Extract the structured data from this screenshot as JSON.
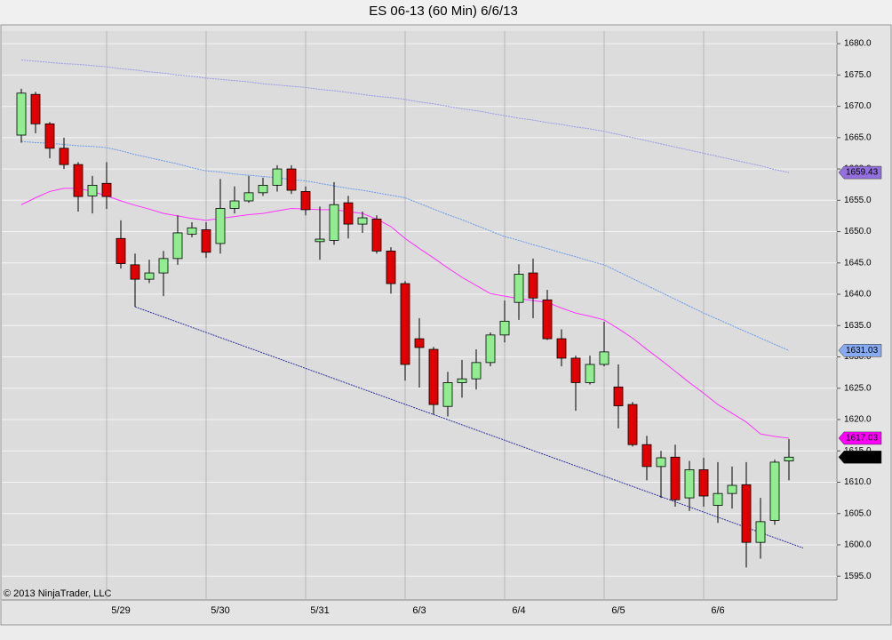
{
  "chart_data": {
    "type": "candlestick",
    "title": "ES 06-13 (60 Min)  6/6/13",
    "copyright": "© 2013 NinjaTrader, LLC",
    "categories": [
      null,
      null,
      null,
      null,
      null,
      null,
      null,
      "5/29",
      null,
      null,
      null,
      null,
      null,
      null,
      "5/30",
      null,
      null,
      null,
      null,
      null,
      null,
      "5/31",
      null,
      null,
      null,
      null,
      null,
      null,
      "6/3",
      null,
      null,
      null,
      null,
      null,
      null,
      "6/4",
      null,
      null,
      null,
      null,
      null,
      null,
      "6/5",
      null,
      null,
      null,
      null,
      null,
      null,
      "6/6",
      null,
      null,
      null,
      null,
      null
    ],
    "open": [
      1665.4,
      1671.9,
      1667.2,
      1663.3,
      1660.7,
      1655.7,
      1657.7,
      1648.9,
      1644.7,
      1642.4,
      1643.4,
      1645.7,
      1649.6,
      1650.3,
      1648.1,
      1653.7,
      1654.9,
      1656.2,
      1657.4,
      1660.0,
      1656.4,
      1648.4,
      1648.6,
      1654.6,
      1651.2,
      1652.0,
      1646.9,
      1641.7,
      1632.9,
      1631.2,
      1622.1,
      1625.9,
      1626.5,
      1629.1,
      1633.5,
      1638.7,
      1643.4,
      1639.1,
      1632.9,
      1629.8,
      1625.9,
      1628.8,
      1625.2,
      1622.4,
      1616.0,
      1612.5,
      1614.0,
      1607.5,
      1612.0,
      1606.3,
      1608.2,
      1609.6,
      1600.4,
      1603.9,
      1613.4
    ],
    "high": [
      1672.8,
      1672.3,
      1667.5,
      1665.0,
      1661.1,
      1658.9,
      1661.1,
      1651.8,
      1646.5,
      1645.5,
      1646.9,
      1652.6,
      1651.5,
      1651.5,
      1658.4,
      1657.2,
      1658.9,
      1658.6,
      1660.6,
      1660.6,
      1657.2,
      1654.0,
      1657.9,
      1655.7,
      1653.2,
      1652.6,
      1647.5,
      1642.1,
      1636.2,
      1631.6,
      1627.6,
      1629.5,
      1631.2,
      1633.9,
      1639.0,
      1644.8,
      1645.7,
      1640.7,
      1634.4,
      1630.2,
      1630.2,
      1635.6,
      1628.8,
      1622.8,
      1617.4,
      1615.0,
      1616.0,
      1613.4,
      1613.9,
      1613.2,
      1612.5,
      1613.2,
      1607.5,
      1613.6,
      1616.9
    ],
    "low": [
      1664.2,
      1665.7,
      1661.7,
      1660.0,
      1653.2,
      1652.9,
      1653.6,
      1644.1,
      1638.0,
      1641.8,
      1639.7,
      1644.7,
      1649.1,
      1645.8,
      1646.5,
      1652.9,
      1654.6,
      1655.7,
      1656.4,
      1656.0,
      1652.6,
      1645.5,
      1647.9,
      1648.9,
      1649.8,
      1646.5,
      1640.1,
      1626.2,
      1625.1,
      1620.8,
      1620.5,
      1623.5,
      1624.8,
      1628.5,
      1632.3,
      1635.9,
      1636.2,
      1632.7,
      1628.5,
      1621.4,
      1625.6,
      1628.5,
      1618.6,
      1615.7,
      1610.3,
      1607.5,
      1606.1,
      1605.4,
      1606.1,
      1603.5,
      1605.8,
      1596.4,
      1597.8,
      1603.2,
      1610.3
    ],
    "close": [
      1672.1,
      1667.2,
      1663.3,
      1660.7,
      1655.6,
      1657.4,
      1655.6,
      1644.9,
      1642.4,
      1643.4,
      1645.7,
      1649.8,
      1650.6,
      1646.7,
      1653.7,
      1654.9,
      1656.2,
      1657.4,
      1660.0,
      1656.6,
      1653.5,
      1648.8,
      1654.3,
      1651.2,
      1652.2,
      1646.9,
      1641.7,
      1628.8,
      1631.5,
      1622.4,
      1625.9,
      1626.5,
      1629.1,
      1633.5,
      1635.7,
      1643.2,
      1639.4,
      1632.9,
      1629.8,
      1625.9,
      1628.8,
      1630.8,
      1622.2,
      1616.0,
      1612.5,
      1613.9,
      1607.2,
      1612.0,
      1607.8,
      1608.2,
      1609.5,
      1600.4,
      1603.7,
      1613.2,
      1614
    ],
    "up_color": "#90ee90",
    "down_color": "#e00000",
    "last_price_label": "1614.00",
    "overlays": [
      {
        "color": "#9a9ae6",
        "dash": true,
        "label_color": "#9370db",
        "values": [
          1677.4,
          1677.2,
          1677.0,
          1676.8,
          1676.7,
          1676.5,
          1676.3,
          1676.0,
          1675.8,
          1675.5,
          1675.3,
          1675.0,
          1674.8,
          1674.5,
          1674.3,
          1674.1,
          1673.9,
          1673.6,
          1673.4,
          1673.2,
          1673.0,
          1672.7,
          1672.5,
          1672.2,
          1671.9,
          1671.6,
          1671.4,
          1671.1,
          1670.7,
          1670.4,
          1670.0,
          1669.6,
          1669.3,
          1668.9,
          1668.5,
          1668.1,
          1667.8,
          1667.4,
          1667.1,
          1666.7,
          1666.4,
          1666.0,
          1665.5,
          1665.0,
          1664.5,
          1664.0,
          1663.5,
          1663.0,
          1662.5,
          1662.0,
          1661.5,
          1661.0,
          1660.5,
          1659.9,
          1659.43
        ]
      },
      {
        "color": "#6a9ae8",
        "dash": true,
        "label_color": "#87aaf0",
        "values": [
          1664.4,
          1664.2,
          1664.1,
          1663.9,
          1663.7,
          1663.6,
          1663.4,
          1662.9,
          1662.3,
          1661.8,
          1661.3,
          1660.8,
          1660.2,
          1659.7,
          1659.5,
          1659.2,
          1659.0,
          1658.8,
          1658.6,
          1658.3,
          1658.1,
          1657.7,
          1657.3,
          1656.9,
          1656.6,
          1656.2,
          1655.8,
          1655.4,
          1654.5,
          1653.6,
          1652.7,
          1651.9,
          1651.0,
          1650.1,
          1649.2,
          1648.6,
          1647.9,
          1647.3,
          1646.6,
          1646.0,
          1645.3,
          1644.7,
          1643.6,
          1642.5,
          1641.4,
          1640.3,
          1639.2,
          1638.1,
          1637.0,
          1636.0,
          1635.0,
          1634.0,
          1633.0,
          1632.0,
          1631.03
        ]
      },
      {
        "color": "#ff33ff",
        "dash": false,
        "label_color": "#ff00ff",
        "values": [
          1654.3,
          1655.4,
          1656.4,
          1656.9,
          1656.9,
          1656.4,
          1655.7,
          1654.9,
          1654.2,
          1653.6,
          1652.9,
          1652.5,
          1652.1,
          1651.8,
          1652.1,
          1652.4,
          1652.7,
          1652.9,
          1653.3,
          1653.7,
          1653.6,
          1653.5,
          1653.5,
          1653.2,
          1652.9,
          1652.0,
          1650.8,
          1648.9,
          1647.3,
          1645.8,
          1644.2,
          1642.7,
          1641.4,
          1640.1,
          1639.7,
          1639.3,
          1639.0,
          1638.7,
          1637.8,
          1637.0,
          1636.5,
          1635.9,
          1634.5,
          1633.0,
          1631.2,
          1629.5,
          1627.7,
          1625.9,
          1624.2,
          1622.4,
          1621.0,
          1619.6,
          1617.7,
          1617.3,
          1617.03
        ]
      }
    ],
    "trend_line": {
      "color": "#3030a0",
      "x": [
        8,
        55
      ],
      "values": [
        1638.0,
        1599.5
      ]
    },
    "ylim": [
      1591.2,
      1682.0
    ],
    "yticks": [
      {
        "value": 1595,
        "label": "1595.0"
      },
      {
        "value": 1600,
        "label": "1600.0"
      },
      {
        "value": 1605,
        "label": "1605.0"
      },
      {
        "value": 1610,
        "label": "1610.0"
      },
      {
        "value": 1615,
        "label": "1615.0"
      },
      {
        "value": 1620,
        "label": "1620.0"
      },
      {
        "value": 1625,
        "label": "1625.0"
      },
      {
        "value": 1630,
        "label": "1630.0"
      },
      {
        "value": 1635,
        "label": "1635.0"
      },
      {
        "value": 1640,
        "label": "1640.0"
      },
      {
        "value": 1645,
        "label": "1645.0"
      },
      {
        "value": 1650,
        "label": "1650.0"
      },
      {
        "value": 1655,
        "label": "1655.0"
      },
      {
        "value": 1660,
        "label": "1660.0"
      },
      {
        "value": 1665,
        "label": "1665.0"
      },
      {
        "value": 1670,
        "label": "1670.0"
      },
      {
        "value": 1675,
        "label": "1675.0"
      },
      {
        "value": 1680,
        "label": "1680.0"
      }
    ],
    "grid": true
  }
}
